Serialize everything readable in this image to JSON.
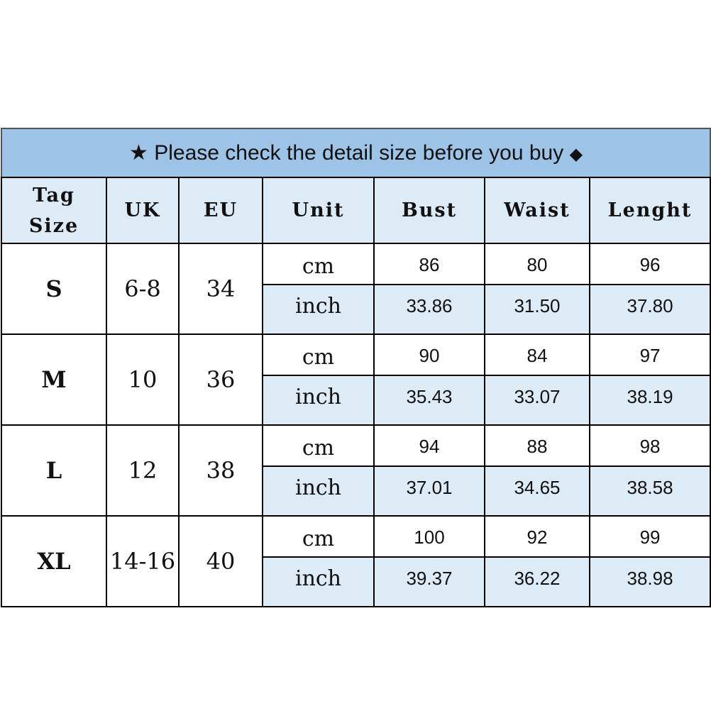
{
  "title": {
    "star_icon": "★",
    "text": "Please check the detail size before you buy",
    "diamond_icon": "◆"
  },
  "headers": [
    "Tag\nSize",
    "UK",
    "EU",
    "Unit",
    "Bust",
    "Waist",
    "Lenght"
  ],
  "rows": [
    {
      "size": "S",
      "uk": "6-8",
      "eu": "34",
      "cm": {
        "unit": "cm",
        "bust": "86",
        "waist": "80",
        "length": "96"
      },
      "inch": {
        "unit": "inch",
        "bust": "33.86",
        "waist": "31.50",
        "length": "37.80"
      }
    },
    {
      "size": "M",
      "uk": "10",
      "eu": "36",
      "cm": {
        "unit": "cm",
        "bust": "90",
        "waist": "84",
        "length": "97"
      },
      "inch": {
        "unit": "inch",
        "bust": "35.43",
        "waist": "33.07",
        "length": "38.19"
      }
    },
    {
      "size": "L",
      "uk": "12",
      "eu": "38",
      "cm": {
        "unit": "cm",
        "bust": "94",
        "waist": "88",
        "length": "98"
      },
      "inch": {
        "unit": "inch",
        "bust": "37.01",
        "waist": "34.65",
        "length": "38.58"
      }
    },
    {
      "size": "XL",
      "uk": "14-16",
      "eu": "40",
      "cm": {
        "unit": "cm",
        "bust": "100",
        "waist": "92",
        "length": "99"
      },
      "inch": {
        "unit": "inch",
        "bust": "39.37",
        "waist": "36.22",
        "length": "38.98"
      }
    }
  ],
  "colors": {
    "title_bg": "#9dc3e6",
    "header_bg": "#ddebf7",
    "inch_row_bg": "#ddebf7"
  }
}
